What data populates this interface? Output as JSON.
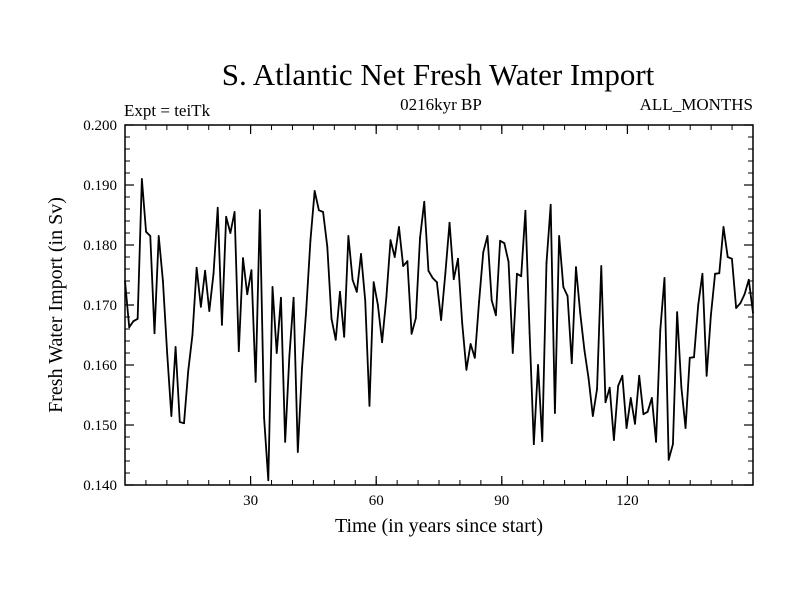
{
  "chart_data": {
    "type": "line",
    "title": "S. Atlantic Net Fresh Water Import",
    "subtitle_left": "Expt = teiTk",
    "subtitle_center": "0216kyr BP",
    "subtitle_right": "ALL_MONTHS",
    "xlabel": "Time (in years since start)",
    "ylabel": "Fresh Water Import (in Sv)",
    "xlim": [
      0,
      150
    ],
    "ylim": [
      0.14,
      0.2
    ],
    "xticks": [
      30,
      60,
      90,
      120
    ],
    "xtick_labels": [
      "30",
      "60",
      "90",
      "120"
    ],
    "yticks": [
      0.14,
      0.15,
      0.16,
      0.17,
      0.18,
      0.19,
      0.2
    ],
    "ytick_labels": [
      "0.140",
      "0.150",
      "0.160",
      "0.170",
      "0.180",
      "0.190",
      "0.200"
    ],
    "series": [
      {
        "name": "fresh_water_import",
        "values": [
          0.174,
          0.1663,
          0.1673,
          0.1677,
          0.191,
          0.1822,
          0.1815,
          0.1653,
          0.1815,
          0.174,
          0.162,
          0.1515,
          0.163,
          0.1505,
          0.1503,
          0.159,
          0.165,
          0.1762,
          0.1697,
          0.1757,
          0.169,
          0.1752,
          0.1862,
          0.1667,
          0.1847,
          0.182,
          0.1855,
          0.1623,
          0.1778,
          0.1718,
          0.1758,
          0.1572,
          0.1858,
          0.1512,
          0.1408,
          0.173,
          0.162,
          0.1712,
          0.1472,
          0.1615,
          0.1712,
          0.1455,
          0.1595,
          0.1692,
          0.1808,
          0.189,
          0.1858,
          0.1855,
          0.1797,
          0.1677,
          0.1642,
          0.1722,
          0.1647,
          0.1815,
          0.1742,
          0.1722,
          0.1785,
          0.1707,
          0.1532,
          0.1738,
          0.17,
          0.1638,
          0.1712,
          0.1808,
          0.178,
          0.183,
          0.1765,
          0.1773,
          0.1652,
          0.1678,
          0.1812,
          0.1872,
          0.1757,
          0.1745,
          0.1738,
          0.1675,
          0.1752,
          0.1837,
          0.1743,
          0.1777,
          0.167,
          0.1592,
          0.1635,
          0.1612,
          0.1705,
          0.1788,
          0.1815,
          0.1708,
          0.1683,
          0.1807,
          0.1803,
          0.1772,
          0.162,
          0.1752,
          0.1748,
          0.1857,
          0.1653,
          0.1468,
          0.16,
          0.1473,
          0.177,
          0.1867,
          0.152,
          0.1815,
          0.173,
          0.1715,
          0.1603,
          0.1763,
          0.1687,
          0.1625,
          0.1577,
          0.1515,
          0.156,
          0.1765,
          0.1538,
          0.1562,
          0.1475,
          0.1565,
          0.1582,
          0.1495,
          0.1545,
          0.1502,
          0.1582,
          0.1518,
          0.1522,
          0.1545,
          0.1472,
          0.1658,
          0.1745,
          0.1442,
          0.1468,
          0.1688,
          0.1563,
          0.1495,
          0.1612,
          0.1613,
          0.17,
          0.1752,
          0.1582,
          0.1682,
          0.1752,
          0.1753,
          0.183,
          0.178,
          0.1777,
          0.1695,
          0.1703,
          0.1718,
          0.1742,
          0.1687
        ]
      }
    ]
  }
}
